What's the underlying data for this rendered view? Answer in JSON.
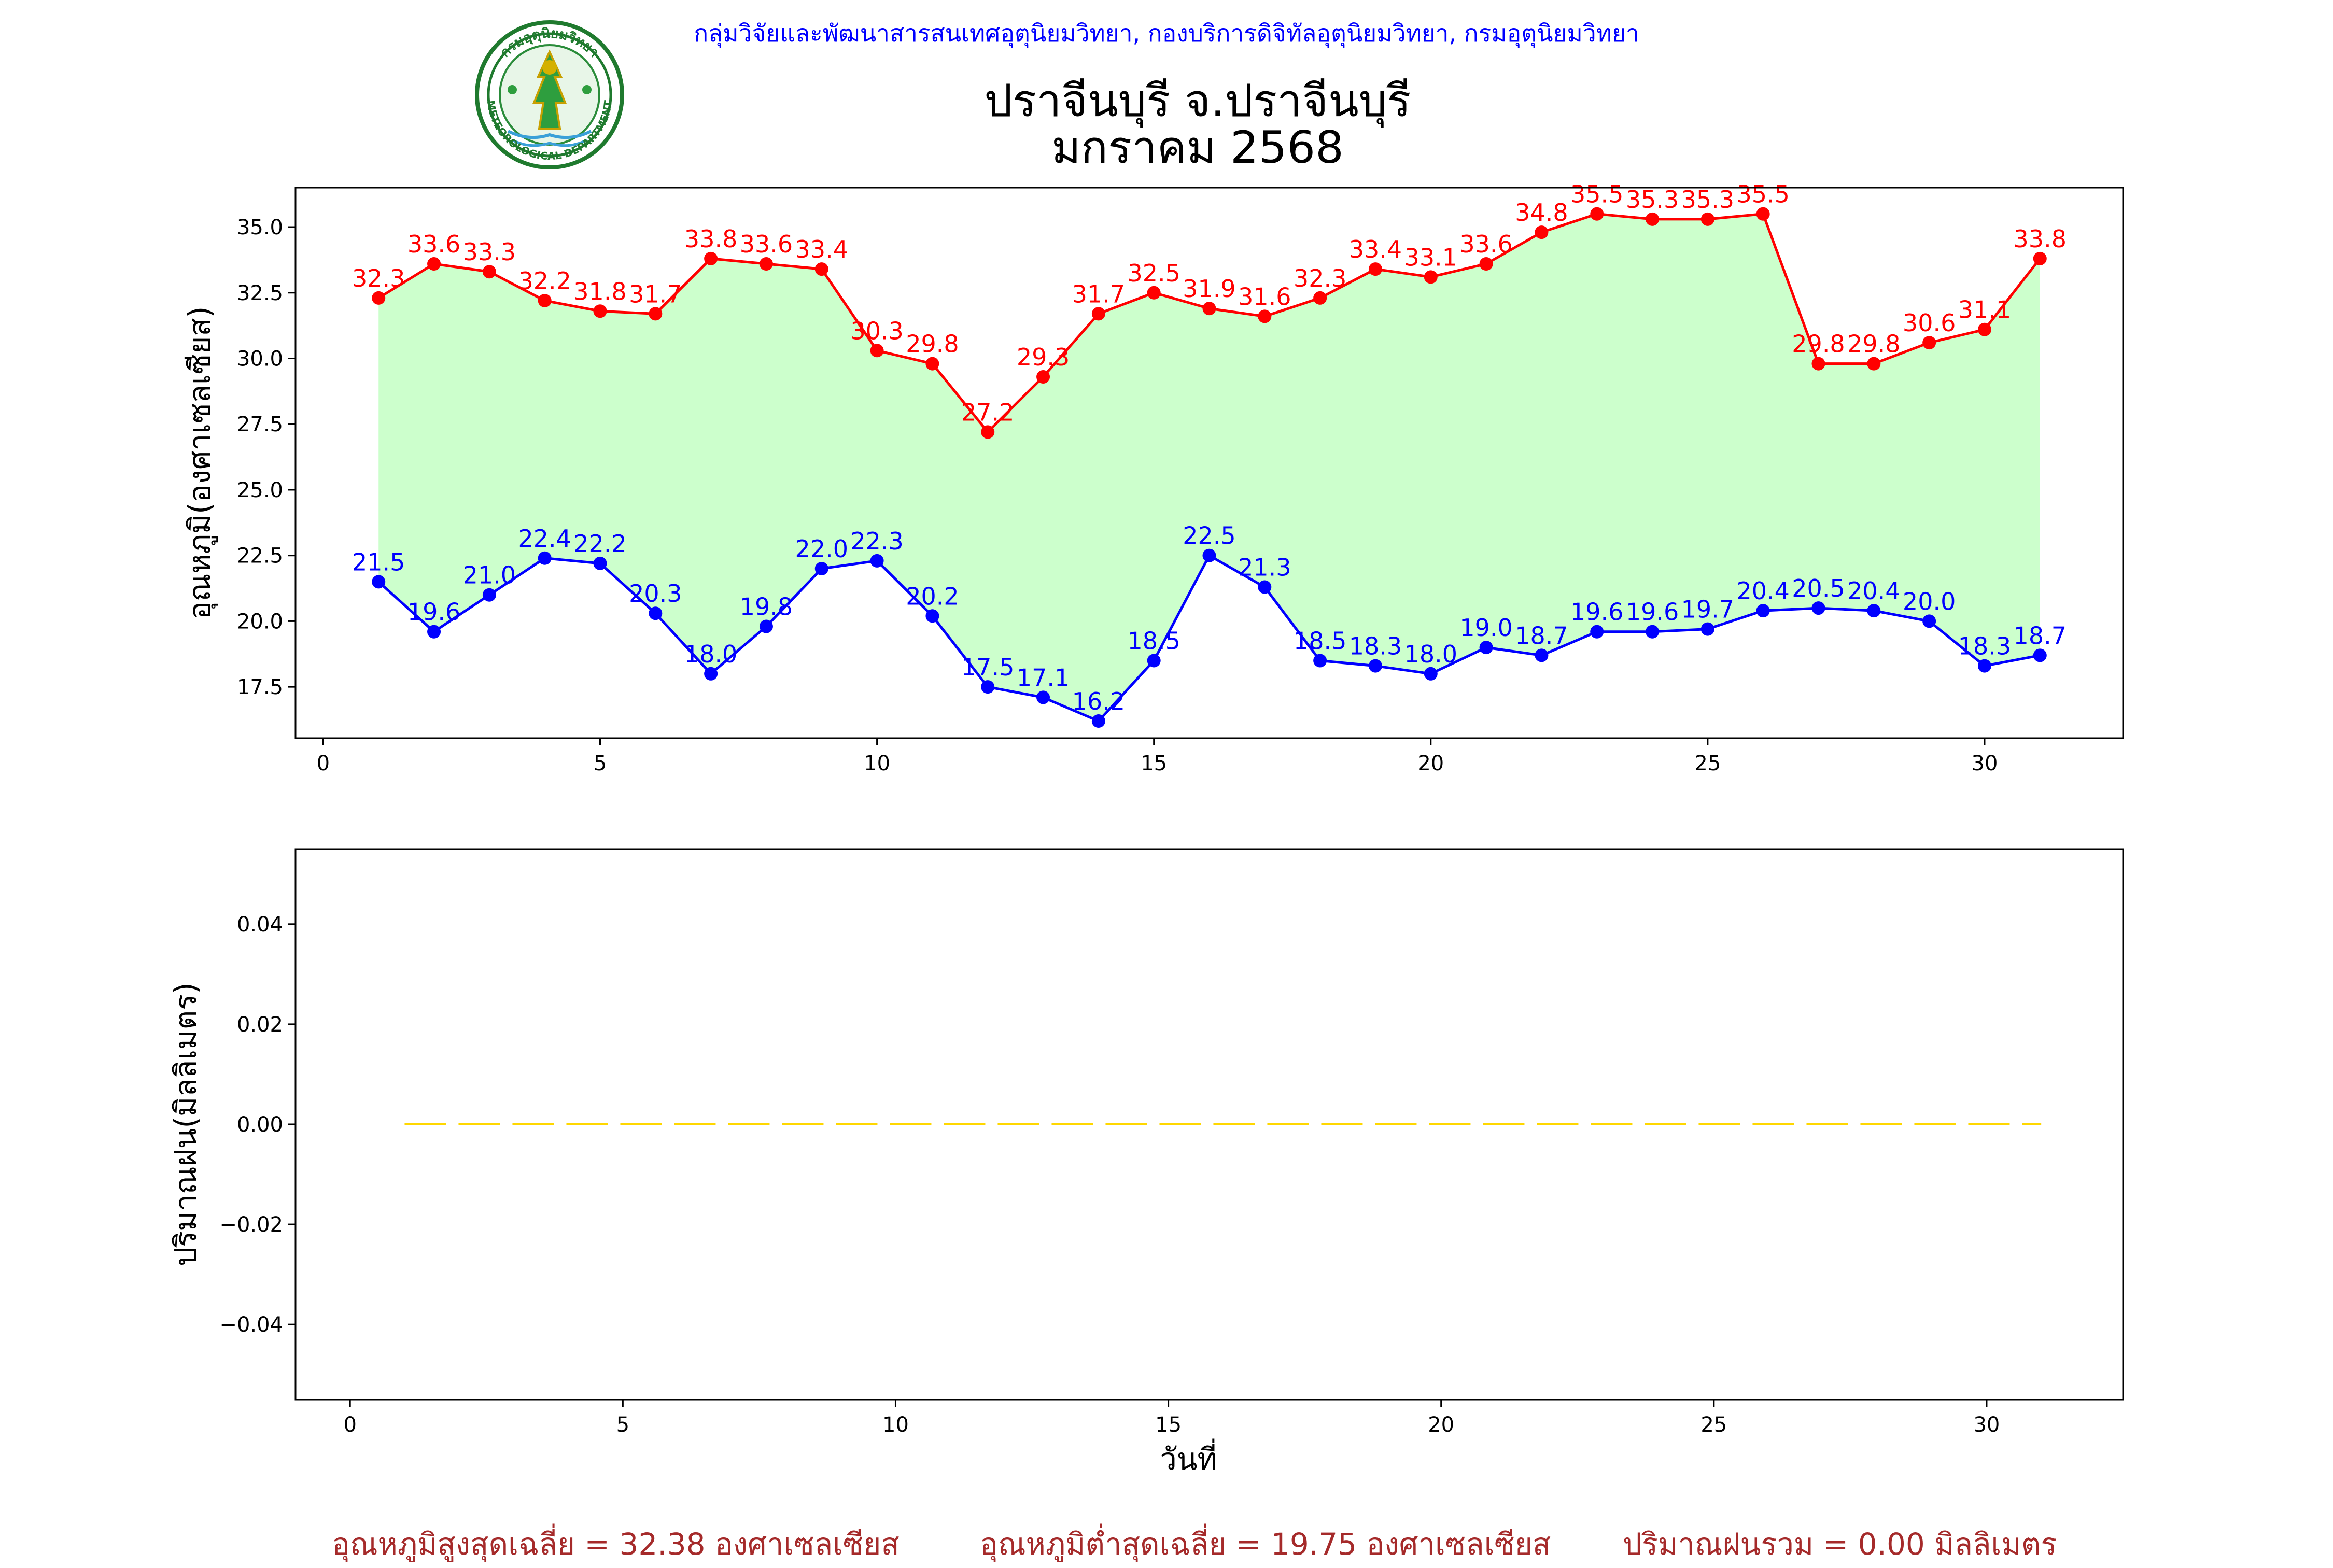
{
  "header": {
    "department_line": "กลุ่มวิจัยและพัฒนาสารสนเทศอุตุนิยมวิทยา, กองบริการดิจิทัลอุตุนิยมวิทยา, กรมอุตุนิยมวิทยา",
    "logo_text_top": "กรมอุตุนิยมวิทยา",
    "logo_text_bottom": "METEOROLOGICAL DEPARTMENT"
  },
  "title": {
    "line1": "ปราจีนบุรี จ.ปราจีนบุรี",
    "line2": "มกราคม 2568"
  },
  "colors": {
    "max_line": "#ff0000",
    "min_line": "#0000ff",
    "fill_between": "#ccffcc",
    "rain_line": "#ffd700",
    "summary_text": "#a52a2a"
  },
  "chart_data": [
    {
      "type": "line",
      "ylabel": "อุณหภูมิ(องศาเซลเซียส)",
      "xlabel": "",
      "xlim": [
        -0.5,
        32.5
      ],
      "ylim": [
        15.55,
        36.5
      ],
      "xticks": [
        0,
        5,
        10,
        15,
        20,
        25,
        30
      ],
      "yticks": [
        17.5,
        20.0,
        22.5,
        25.0,
        27.5,
        30.0,
        32.5,
        35.0
      ],
      "x": [
        1,
        2,
        3,
        4,
        5,
        6,
        7,
        8,
        9,
        10,
        11,
        12,
        13,
        14,
        15,
        16,
        17,
        18,
        19,
        20,
        21,
        22,
        23,
        24,
        25,
        26,
        27,
        28,
        29,
        30,
        31
      ],
      "series": [
        {
          "role": "max",
          "values": [
            32.3,
            33.6,
            33.3,
            32.2,
            31.8,
            31.7,
            33.8,
            33.6,
            33.4,
            30.3,
            29.8,
            27.2,
            29.3,
            31.7,
            32.5,
            31.9,
            31.6,
            32.3,
            33.4,
            33.1,
            33.6,
            34.8,
            35.5,
            35.3,
            35.3,
            35.5,
            29.8,
            29.8,
            30.6,
            31.1,
            33.8
          ]
        },
        {
          "role": "min",
          "values": [
            21.5,
            19.6,
            21.0,
            22.4,
            22.2,
            20.3,
            18.0,
            19.8,
            22.0,
            22.3,
            20.2,
            17.5,
            17.1,
            16.2,
            18.5,
            22.5,
            21.3,
            18.5,
            18.3,
            18.0,
            19.0,
            18.7,
            19.6,
            19.6,
            19.7,
            20.4,
            20.5,
            20.4,
            20.0,
            18.3,
            18.7
          ]
        }
      ],
      "fill_between": true,
      "grid": false
    },
    {
      "type": "line",
      "ylabel": "ปริมาณฝน(มิลลิเมตร)",
      "xlabel": "วันที่",
      "xlim": [
        -1,
        32.5
      ],
      "ylim": [
        -0.055,
        0.055
      ],
      "xticks": [
        0,
        5,
        10,
        15,
        20,
        25,
        30
      ],
      "yticks": [
        -0.04,
        -0.02,
        0.0,
        0.02,
        0.04
      ],
      "x": [
        1,
        2,
        3,
        4,
        5,
        6,
        7,
        8,
        9,
        10,
        11,
        12,
        13,
        14,
        15,
        16,
        17,
        18,
        19,
        20,
        21,
        22,
        23,
        24,
        25,
        26,
        27,
        28,
        29,
        30,
        31
      ],
      "series": [
        {
          "role": "rain",
          "values": [
            0,
            0,
            0,
            0,
            0,
            0,
            0,
            0,
            0,
            0,
            0,
            0,
            0,
            0,
            0,
            0,
            0,
            0,
            0,
            0,
            0,
            0,
            0,
            0,
            0,
            0,
            0,
            0,
            0,
            0,
            0
          ],
          "line_style": "dashed"
        }
      ],
      "grid": false
    }
  ],
  "summary": {
    "avg_max": "อุณหภูมิสูงสุดเฉลี่ย = 32.38 องศาเซลเซียส",
    "avg_min": "อุณหภูมิต่ำสุดเฉลี่ย = 19.75 องศาเซลเซียส",
    "total_rain": "ปริมาณฝนรวม = 0.00 มิลลิเมตร"
  }
}
